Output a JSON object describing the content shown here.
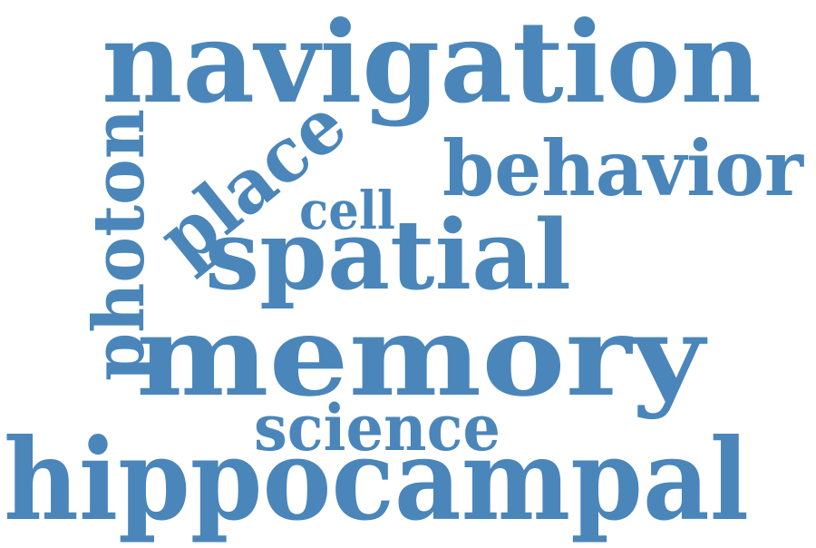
{
  "word_cloud": {
    "color": "#4a86ba",
    "words": {
      "navigation": "navigation",
      "behavior": "behavior",
      "place": "place",
      "cell": "cell",
      "photon": "photon",
      "spatial": "spatial",
      "memory": "memory",
      "science": "science",
      "hippocampal": "hippocampal"
    }
  }
}
